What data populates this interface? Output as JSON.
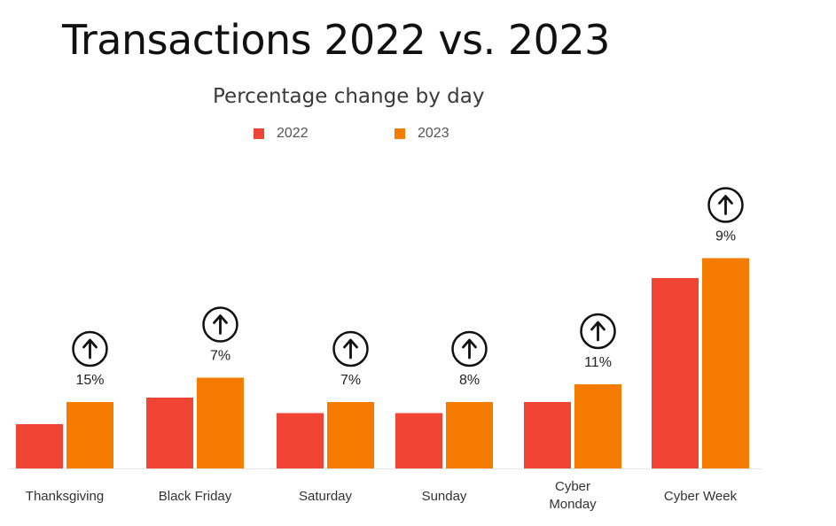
{
  "chart_data": {
    "type": "bar",
    "title": "Transactions 2022 vs. 2023",
    "subtitle": "Percentage change by day",
    "categories": [
      "Thanksgiving",
      "Black Friday",
      "Saturday",
      "Sunday",
      "Cyber Monday",
      "Cyber Week"
    ],
    "category_lines": [
      [
        "Thanksgiving"
      ],
      [
        "Black Friday"
      ],
      [
        "Saturday"
      ],
      [
        "Sunday"
      ],
      [
        "Cyber",
        "Monday"
      ],
      [
        "Cyber Week"
      ]
    ],
    "series": [
      {
        "name": "2022",
        "color": "#f04434",
        "values": [
          10,
          16,
          12.5,
          12.5,
          15,
          43
        ]
      },
      {
        "name": "2023",
        "color": "#f57c00",
        "values": [
          15,
          20.5,
          15,
          15,
          19,
          47.5
        ]
      }
    ],
    "change_labels": [
      "15%",
      "7%",
      "7%",
      "8%",
      "11%",
      "9%"
    ],
    "change_icon": "arrow-up-circle-icon",
    "ylim": [
      0,
      60
    ],
    "grid": false,
    "legend_position": "top-center"
  }
}
